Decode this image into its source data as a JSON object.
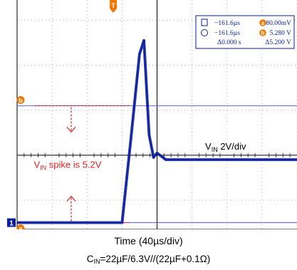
{
  "colors": {
    "trace": "#0a1e9c",
    "grid": "#b8b8b8",
    "axis": "#000000",
    "ref_line": "#5a64e6",
    "marker": "#f07800",
    "annotation": "#e02020",
    "readout_text": "#0a1e9c"
  },
  "chart_data": {
    "type": "line",
    "title": "",
    "xlabel": "Time (40µs/div)",
    "ylabel": "",
    "grid": true,
    "x_units": "µs",
    "y_units": "V",
    "x_per_div": 40,
    "y_per_div": 2,
    "xlim": [
      -120,
      200
    ],
    "ylim": [
      -3.2,
      7.0
    ],
    "series": [
      {
        "name": "",
        "trace_label": "V_IN 2V/div",
        "x": [
          -120,
          -80,
          -40,
          -5,
          0,
          10,
          20,
          25,
          31,
          36,
          40,
          50,
          80,
          120,
          160,
          200
        ],
        "y": [
          -2.9,
          -2.9,
          -2.9,
          -2.9,
          -2.9,
          0.8,
          4.6,
          5.2,
          1.0,
          0.0,
          0.2,
          -0.1,
          -0.1,
          -0.1,
          -0.1,
          -0.1
        ]
      }
    ],
    "cursor_a_level": 2.3,
    "cursor_b_level": -2.9,
    "annotation_text": "V_IN spike is 5.2V",
    "readout": {
      "row1": {
        "time": "−161.6µs",
        "badge": "a",
        "value": "80.00mV"
      },
      "row2": {
        "time": "−161.6µs",
        "badge": "b",
        "value": "5.280 V"
      },
      "row3": {
        "delta_time": "Δ0.000 s",
        "delta_value": "Δ5.200 V"
      }
    },
    "channel_marker": "1",
    "trigger_marker": "T"
  },
  "captions": {
    "xaxis_prefix": "Time (40µs/div)",
    "cin_prefix": "C",
    "cin_sub": "IN",
    "cin_rest": "=22µF/6.3V//(22µF+0.1Ω)"
  }
}
